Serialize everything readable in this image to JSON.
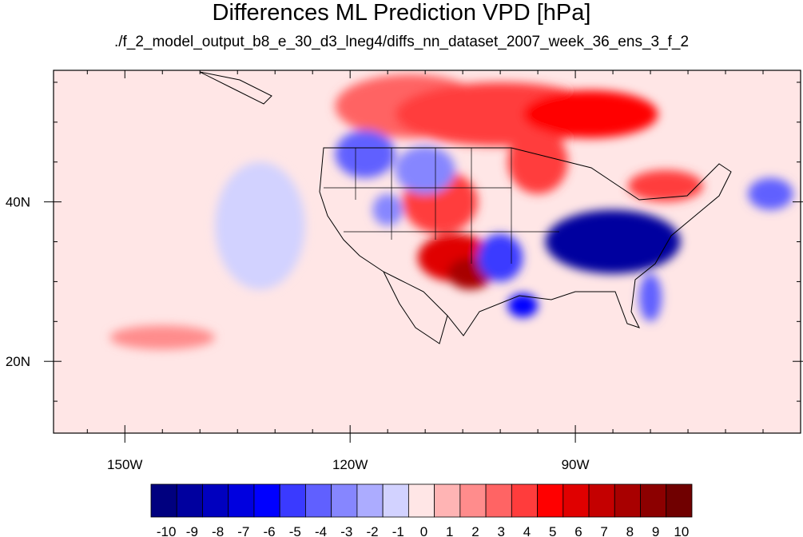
{
  "title": "Differences ML Prediction VPD [hPa]",
  "subtitle": "./f_2_model_output_b8_e_30_d3_lneg4/diffs_nn_dataset_2007_week_36_ens_3_f_2",
  "map": {
    "lon_range": [
      -159.5,
      -60.0
    ],
    "lat_range": [
      11.0,
      56.5
    ],
    "lon_ticks": [
      {
        "lon": -150,
        "label": "150W"
      },
      {
        "lon": -120,
        "label": "120W"
      },
      {
        "lon": -90,
        "label": "90W"
      }
    ],
    "lat_ticks": [
      {
        "lat": 40,
        "label": "40N"
      },
      {
        "lat": 20,
        "label": "20N"
      }
    ],
    "patches": [
      {
        "lon": -112,
        "lat": 52,
        "rx": 10,
        "ry": 4,
        "level": 3
      },
      {
        "lon": -100,
        "lat": 51,
        "rx": 14,
        "ry": 4,
        "level": 4
      },
      {
        "lon": -88,
        "lat": 51,
        "rx": 9,
        "ry": 3,
        "level": 5
      },
      {
        "lon": -95,
        "lat": 45,
        "rx": 4,
        "ry": 4,
        "level": 4
      },
      {
        "lon": -108,
        "lat": 40,
        "rx": 5,
        "ry": 4,
        "level": 4
      },
      {
        "lon": -106,
        "lat": 33,
        "rx": 5,
        "ry": 3,
        "level": 6
      },
      {
        "lon": -104,
        "lat": 31,
        "rx": 3,
        "ry": 2,
        "level": 8
      },
      {
        "lon": -78,
        "lat": 42,
        "rx": 5,
        "ry": 2,
        "level": 4
      },
      {
        "lon": -145,
        "lat": 23,
        "rx": 7,
        "ry": 1.5,
        "level": 2
      },
      {
        "lon": -118,
        "lat": 46,
        "rx": 4,
        "ry": 3,
        "level": -4
      },
      {
        "lon": -110,
        "lat": 44,
        "rx": 4,
        "ry": 3,
        "level": -3
      },
      {
        "lon": -115,
        "lat": 39,
        "rx": 2,
        "ry": 2,
        "level": -3
      },
      {
        "lon": -100,
        "lat": 33,
        "rx": 3,
        "ry": 3,
        "level": -5
      },
      {
        "lon": -97,
        "lat": 27,
        "rx": 2,
        "ry": 1.5,
        "level": -6
      },
      {
        "lon": -85,
        "lat": 35,
        "rx": 9,
        "ry": 4,
        "level": -9
      },
      {
        "lon": -80,
        "lat": 28,
        "rx": 1.5,
        "ry": 3,
        "level": -4
      },
      {
        "lon": -132,
        "lat": 37,
        "rx": 6,
        "ry": 8,
        "level": -1
      },
      {
        "lon": -64,
        "lat": 41,
        "rx": 3,
        "ry": 2,
        "level": -4
      }
    ],
    "colorbar": {
      "colors": [
        "#00007f",
        "#00009f",
        "#0000bf",
        "#0000df",
        "#0000ff",
        "#3a3aff",
        "#6060ff",
        "#8686ff",
        "#acacff",
        "#d2d2ff",
        "#ffe6e6",
        "#ffb4b4",
        "#ff8c8c",
        "#ff6464",
        "#ff3c3c",
        "#ff0000",
        "#e00000",
        "#c40000",
        "#a80000",
        "#8c0000",
        "#700000"
      ],
      "labels": [
        "-10",
        "-9",
        "-8",
        "-7",
        "-6",
        "-5",
        "-4",
        "-3",
        "-2",
        "-1",
        "0",
        "1",
        "2",
        "3",
        "4",
        "5",
        "6",
        "7",
        "8",
        "9",
        "10"
      ]
    }
  }
}
